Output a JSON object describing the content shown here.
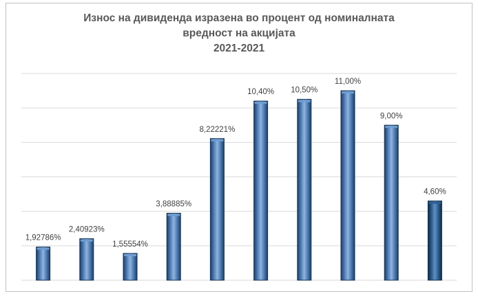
{
  "chart_data": {
    "type": "bar",
    "title_lines": [
      "Износ на дивиденда изразена во процент од номиналната",
      "вредност на акцијата",
      "2021-2021"
    ],
    "categories": [
      "",
      "",
      "",
      "",
      "",
      "",
      "",
      "",
      "",
      ""
    ],
    "values": [
      1.92786,
      2.40923,
      1.55554,
      3.88885,
      8.22221,
      10.4,
      10.5,
      11.0,
      9.0,
      4.6
    ],
    "data_labels": [
      "1,92786%",
      "2,40923%",
      "1,55554%",
      "3,88885%",
      "8,22221%",
      "10,40%",
      "10,50%",
      "11,00%",
      "9,00%",
      "4,60%"
    ],
    "ylim": [
      0,
      12
    ],
    "grid": true,
    "xlabel": "",
    "ylabel": "",
    "colors": {
      "bar": "#4f81bd",
      "bar_last": "#1f4e79",
      "grid": "#d9d9d9",
      "title": "#595959",
      "label": "#404040"
    }
  }
}
